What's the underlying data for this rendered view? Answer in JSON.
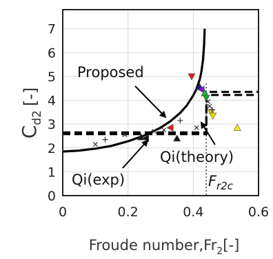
{
  "chart_data": {
    "type": "line",
    "xlabel": "Froude number,Fr",
    "xlabel_sub": "2",
    "xlabel_tail": "[-]",
    "ylabel": "C",
    "ylabel_sub": "d2",
    "ylabel_tail": "[-]",
    "xlim": [
      0,
      0.6
    ],
    "ylim": [
      0,
      7.8
    ],
    "x_ticks": [
      "0",
      "0.2",
      "0.4",
      "0.6"
    ],
    "x_tick_values": [
      0,
      0.2,
      0.4,
      0.6
    ],
    "y_ticks": [
      "0",
      "1",
      "2",
      "3",
      "4",
      "5",
      "6",
      "7"
    ],
    "y_tick_values": [
      0,
      1,
      2,
      3,
      4,
      5,
      6,
      7
    ],
    "grid": true,
    "critical_froude": 0.44,
    "series": [
      {
        "label": "Proposed",
        "style": "solid",
        "x": [
          0,
          0.05,
          0.1,
          0.15,
          0.2,
          0.25,
          0.3,
          0.33,
          0.36,
          0.38,
          0.4,
          0.41,
          0.42,
          0.425,
          0.43,
          0.433,
          0.435
        ],
        "y": [
          1.85,
          1.89,
          1.97,
          2.09,
          2.28,
          2.52,
          2.85,
          3.12,
          3.47,
          3.78,
          4.2,
          4.48,
          4.88,
          5.2,
          5.7,
          6.3,
          7.0
        ]
      },
      {
        "label": "Qi(exp)",
        "style": "dash",
        "x": [
          0,
          0.44,
          0.44,
          0.6
        ],
        "y": [
          2.65,
          2.65,
          4.35,
          4.35
        ]
      },
      {
        "label": "Qi(theory)",
        "style": "dash",
        "x": [
          0,
          0.44,
          0.44,
          0.6
        ],
        "y": [
          2.58,
          2.58,
          4.22,
          4.22
        ]
      }
    ],
    "markers": [
      {
        "x": 0.1,
        "y": 2.15,
        "shape": "x",
        "color": "#333333"
      },
      {
        "x": 0.13,
        "y": 2.35,
        "shape": "plus",
        "color": "#333333"
      },
      {
        "x": 0.19,
        "y": 2.55,
        "shape": "x",
        "color": "#333333"
      },
      {
        "x": 0.24,
        "y": 2.45,
        "shape": "tri-up",
        "color": "#111111"
      },
      {
        "x": 0.255,
        "y": 2.4,
        "shape": "tri-left",
        "color": "#111111"
      },
      {
        "x": 0.28,
        "y": 2.7,
        "shape": "x",
        "color": "#333333"
      },
      {
        "x": 0.31,
        "y": 2.75,
        "shape": "x",
        "color": "#333333"
      },
      {
        "x": 0.33,
        "y": 2.85,
        "shape": "tri-left",
        "color": "#e02020"
      },
      {
        "x": 0.35,
        "y": 2.4,
        "shape": "tri-up",
        "color": "#111111"
      },
      {
        "x": 0.36,
        "y": 3.15,
        "shape": "plus",
        "color": "#333333"
      },
      {
        "x": 0.41,
        "y": 2.85,
        "shape": "x",
        "color": "#333333"
      },
      {
        "x": 0.395,
        "y": 5.0,
        "shape": "tri-down",
        "color": "#e02020"
      },
      {
        "x": 0.42,
        "y": 4.55,
        "shape": "tri-up",
        "color": "#1a1aa0"
      },
      {
        "x": 0.425,
        "y": 4.45,
        "shape": "tri-left",
        "color": "#7a1ad0"
      },
      {
        "x": 0.435,
        "y": 4.3,
        "shape": "tri-up",
        "color": "#12c030"
      },
      {
        "x": 0.44,
        "y": 4.1,
        "shape": "tri-down",
        "color": "#18a828"
      },
      {
        "x": 0.445,
        "y": 3.95,
        "shape": "x",
        "color": "#333333"
      },
      {
        "x": 0.45,
        "y": 3.75,
        "shape": "x",
        "color": "#333333"
      },
      {
        "x": 0.455,
        "y": 3.5,
        "shape": "tri-down",
        "color": "#e0d000"
      },
      {
        "x": 0.46,
        "y": 3.35,
        "shape": "tri-down",
        "color": "#e8e000"
      },
      {
        "x": 0.458,
        "y": 3.6,
        "shape": "plus",
        "color": "#333333"
      },
      {
        "x": 0.535,
        "y": 2.85,
        "shape": "tri-up",
        "color": "#f0f000"
      }
    ],
    "annotations": [
      {
        "text": "Proposed",
        "name": "proposed-label"
      },
      {
        "text": "Qi(exp)",
        "name": "qi-exp-label"
      },
      {
        "text": "Qi(theory)",
        "name": "qi-theory-label"
      },
      {
        "text": "F",
        "sub": "r2c",
        "name": "fr2c-label"
      }
    ]
  }
}
